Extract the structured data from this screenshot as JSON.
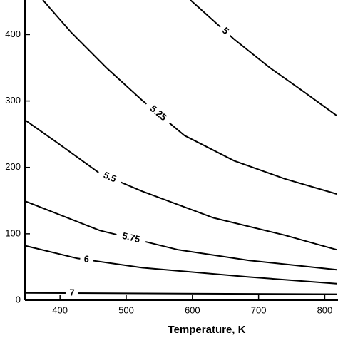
{
  "chart_data": {
    "type": "contour",
    "xlabel": "Temperature, K",
    "xlim": [
      347,
      820
    ],
    "ylim": [
      0,
      452
    ],
    "xticks": [
      400,
      500,
      600,
      700,
      800
    ],
    "yticks": [
      0,
      100,
      200,
      300,
      400
    ],
    "color": "#000000",
    "series": [
      {
        "name": "5",
        "x": [
          597,
          663,
          717,
          771,
          818
        ],
        "y": [
          452,
          393,
          350,
          312,
          278
        ]
      },
      {
        "name": "5.25",
        "x": [
          374,
          417,
          470,
          524,
          588,
          663,
          739,
          818
        ],
        "y": [
          452,
          403,
          350,
          301,
          248,
          210,
          183,
          160
        ]
      },
      {
        "name": "5.5",
        "x": [
          347.5,
          396,
          460,
          524,
          632,
          739,
          818
        ],
        "y": [
          271,
          237,
          191,
          164,
          124,
          98,
          76
        ]
      },
      {
        "name": "5.75",
        "x": [
          347.5,
          460,
          578,
          685,
          818
        ],
        "y": [
          149,
          105,
          76,
          60,
          46
        ]
      },
      {
        "name": "6",
        "x": [
          347.5,
          426,
          524,
          685,
          818
        ],
        "y": [
          82,
          63,
          49,
          35,
          25
        ]
      },
      {
        "name": "7",
        "x": [
          347.5,
          818
        ],
        "y": [
          11,
          9
        ]
      }
    ]
  }
}
